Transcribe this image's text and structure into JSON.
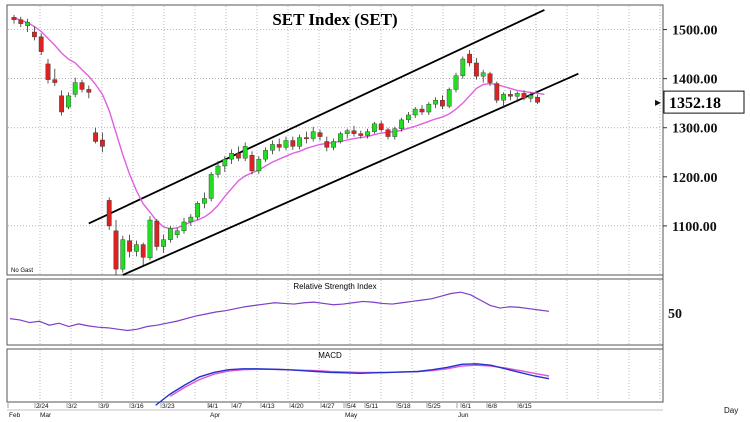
{
  "chart_data": [
    {
      "type": "candlestick",
      "title": "SET Index (SET)",
      "note": "No Gast",
      "y_ticks": [
        1100,
        1200,
        1300,
        1400,
        1500
      ],
      "y_tick_labels": [
        "1100.00",
        "1200.00",
        "1300.00",
        "1400.00",
        "1500.00"
      ],
      "ylim": [
        1000,
        1550
      ],
      "last_value_label": "1352.18",
      "last_value": 1352.18,
      "colors": {
        "up": "#22dd22",
        "down": "#dd2222",
        "ma": "#e060e0",
        "channel": "#000000"
      },
      "candles": [
        {
          "o": 1525,
          "h": 1530,
          "l": 1512,
          "c": 1520
        },
        {
          "o": 1520,
          "h": 1526,
          "l": 1505,
          "c": 1512
        },
        {
          "o": 1508,
          "h": 1522,
          "l": 1495,
          "c": 1515
        },
        {
          "o": 1495,
          "h": 1506,
          "l": 1478,
          "c": 1485
        },
        {
          "o": 1485,
          "h": 1492,
          "l": 1448,
          "c": 1455
        },
        {
          "o": 1430,
          "h": 1440,
          "l": 1390,
          "c": 1398
        },
        {
          "o": 1398,
          "h": 1420,
          "l": 1385,
          "c": 1392
        },
        {
          "o": 1365,
          "h": 1376,
          "l": 1325,
          "c": 1332
        },
        {
          "o": 1342,
          "h": 1372,
          "l": 1338,
          "c": 1365
        },
        {
          "o": 1368,
          "h": 1402,
          "l": 1362,
          "c": 1392
        },
        {
          "o": 1392,
          "h": 1398,
          "l": 1372,
          "c": 1378
        },
        {
          "o": 1378,
          "h": 1386,
          "l": 1360,
          "c": 1372
        },
        {
          "o": 1290,
          "h": 1300,
          "l": 1268,
          "c": 1272
        },
        {
          "o": 1275,
          "h": 1290,
          "l": 1250,
          "c": 1262
        },
        {
          "o": 1152,
          "h": 1158,
          "l": 1092,
          "c": 1100
        },
        {
          "o": 1090,
          "h": 1112,
          "l": 1000,
          "c": 1012
        },
        {
          "o": 1012,
          "h": 1080,
          "l": 1005,
          "c": 1072
        },
        {
          "o": 1070,
          "h": 1082,
          "l": 1036,
          "c": 1048
        },
        {
          "o": 1048,
          "h": 1070,
          "l": 1038,
          "c": 1062
        },
        {
          "o": 1062,
          "h": 1066,
          "l": 1020,
          "c": 1036
        },
        {
          "o": 1035,
          "h": 1120,
          "l": 1030,
          "c": 1112
        },
        {
          "o": 1110,
          "h": 1114,
          "l": 1050,
          "c": 1058
        },
        {
          "o": 1058,
          "h": 1082,
          "l": 1045,
          "c": 1072
        },
        {
          "o": 1072,
          "h": 1100,
          "l": 1066,
          "c": 1095
        },
        {
          "o": 1082,
          "h": 1096,
          "l": 1075,
          "c": 1090
        },
        {
          "o": 1090,
          "h": 1116,
          "l": 1084,
          "c": 1108
        },
        {
          "o": 1108,
          "h": 1124,
          "l": 1100,
          "c": 1118
        },
        {
          "o": 1118,
          "h": 1150,
          "l": 1112,
          "c": 1146
        },
        {
          "o": 1146,
          "h": 1168,
          "l": 1136,
          "c": 1156
        },
        {
          "o": 1156,
          "h": 1210,
          "l": 1150,
          "c": 1205
        },
        {
          "o": 1205,
          "h": 1232,
          "l": 1198,
          "c": 1222
        },
        {
          "o": 1222,
          "h": 1242,
          "l": 1210,
          "c": 1236
        },
        {
          "o": 1236,
          "h": 1256,
          "l": 1226,
          "c": 1248
        },
        {
          "o": 1248,
          "h": 1262,
          "l": 1232,
          "c": 1238
        },
        {
          "o": 1238,
          "h": 1270,
          "l": 1232,
          "c": 1262
        },
        {
          "o": 1244,
          "h": 1252,
          "l": 1205,
          "c": 1212
        },
        {
          "o": 1212,
          "h": 1242,
          "l": 1206,
          "c": 1236
        },
        {
          "o": 1236,
          "h": 1260,
          "l": 1230,
          "c": 1254
        },
        {
          "o": 1254,
          "h": 1274,
          "l": 1246,
          "c": 1266
        },
        {
          "o": 1266,
          "h": 1278,
          "l": 1252,
          "c": 1260
        },
        {
          "o": 1260,
          "h": 1282,
          "l": 1254,
          "c": 1274
        },
        {
          "o": 1274,
          "h": 1282,
          "l": 1255,
          "c": 1262
        },
        {
          "o": 1262,
          "h": 1286,
          "l": 1256,
          "c": 1280
        },
        {
          "o": 1280,
          "h": 1292,
          "l": 1268,
          "c": 1278
        },
        {
          "o": 1278,
          "h": 1302,
          "l": 1272,
          "c": 1292
        },
        {
          "o": 1290,
          "h": 1296,
          "l": 1274,
          "c": 1282
        },
        {
          "o": 1272,
          "h": 1282,
          "l": 1252,
          "c": 1260
        },
        {
          "o": 1260,
          "h": 1278,
          "l": 1254,
          "c": 1272
        },
        {
          "o": 1272,
          "h": 1292,
          "l": 1268,
          "c": 1288
        },
        {
          "o": 1288,
          "h": 1298,
          "l": 1278,
          "c": 1294
        },
        {
          "o": 1294,
          "h": 1304,
          "l": 1282,
          "c": 1288
        },
        {
          "o": 1288,
          "h": 1294,
          "l": 1278,
          "c": 1284
        },
        {
          "o": 1284,
          "h": 1298,
          "l": 1278,
          "c": 1292
        },
        {
          "o": 1292,
          "h": 1312,
          "l": 1288,
          "c": 1308
        },
        {
          "o": 1308,
          "h": 1314,
          "l": 1292,
          "c": 1296
        },
        {
          "o": 1296,
          "h": 1300,
          "l": 1276,
          "c": 1282
        },
        {
          "o": 1282,
          "h": 1302,
          "l": 1276,
          "c": 1298
        },
        {
          "o": 1298,
          "h": 1320,
          "l": 1292,
          "c": 1316
        },
        {
          "o": 1316,
          "h": 1332,
          "l": 1310,
          "c": 1326
        },
        {
          "o": 1326,
          "h": 1342,
          "l": 1320,
          "c": 1338
        },
        {
          "o": 1338,
          "h": 1346,
          "l": 1326,
          "c": 1332
        },
        {
          "o": 1332,
          "h": 1352,
          "l": 1326,
          "c": 1348
        },
        {
          "o": 1348,
          "h": 1362,
          "l": 1340,
          "c": 1356
        },
        {
          "o": 1356,
          "h": 1366,
          "l": 1338,
          "c": 1344
        },
        {
          "o": 1344,
          "h": 1382,
          "l": 1340,
          "c": 1378
        },
        {
          "o": 1378,
          "h": 1412,
          "l": 1372,
          "c": 1406
        },
        {
          "o": 1406,
          "h": 1445,
          "l": 1400,
          "c": 1440
        },
        {
          "o": 1450,
          "h": 1458,
          "l": 1425,
          "c": 1432
        },
        {
          "o": 1432,
          "h": 1442,
          "l": 1398,
          "c": 1405
        },
        {
          "o": 1405,
          "h": 1418,
          "l": 1392,
          "c": 1412
        },
        {
          "o": 1410,
          "h": 1414,
          "l": 1385,
          "c": 1392
        },
        {
          "o": 1390,
          "h": 1394,
          "l": 1350,
          "c": 1356
        },
        {
          "o": 1356,
          "h": 1372,
          "l": 1340,
          "c": 1368
        },
        {
          "o": 1368,
          "h": 1376,
          "l": 1356,
          "c": 1364
        },
        {
          "o": 1364,
          "h": 1374,
          "l": 1352,
          "c": 1370
        },
        {
          "o": 1370,
          "h": 1376,
          "l": 1356,
          "c": 1360
        },
        {
          "o": 1360,
          "h": 1372,
          "l": 1352,
          "c": 1366
        },
        {
          "o": 1362,
          "h": 1368,
          "l": 1348,
          "c": 1352
        }
      ],
      "moving_average": [
        1524,
        1519,
        1514,
        1506,
        1496,
        1482,
        1468,
        1452,
        1440,
        1432,
        1418,
        1405,
        1388,
        1368,
        1335,
        1290,
        1245,
        1205,
        1172,
        1145,
        1128,
        1110,
        1098,
        1094,
        1096,
        1102,
        1108,
        1112,
        1118,
        1128,
        1142,
        1160,
        1176,
        1192,
        1202,
        1208,
        1214,
        1222,
        1230,
        1236,
        1242,
        1248,
        1252,
        1258,
        1262,
        1266,
        1268,
        1270,
        1272,
        1275,
        1278,
        1280,
        1282,
        1286,
        1289,
        1291,
        1292,
        1295,
        1299,
        1303,
        1308,
        1313,
        1318,
        1322,
        1328,
        1338,
        1350,
        1365,
        1380,
        1388,
        1390,
        1388,
        1384,
        1380,
        1376,
        1374,
        1372,
        1370,
        1368
      ],
      "trend_channel": [
        {
          "from": [
            11,
            1105
          ],
          "to": [
            78,
            1540
          ]
        },
        {
          "from": [
            16,
            1000
          ],
          "to": [
            83,
            1410
          ]
        }
      ]
    },
    {
      "type": "line",
      "title": "Relative Strength Index",
      "y_tick_labels": [
        "50"
      ],
      "ylim": [
        0,
        100
      ],
      "series": [
        {
          "values": [
            40,
            38,
            34,
            36,
            30,
            33,
            28,
            32,
            29,
            27,
            26,
            24,
            22,
            24,
            28,
            30,
            33,
            36,
            40,
            44,
            47,
            50,
            52,
            55,
            58,
            60,
            62,
            64,
            63,
            62,
            64,
            65,
            63,
            61,
            62,
            64,
            66,
            65,
            63,
            62,
            64,
            66,
            68,
            70,
            74,
            78,
            80,
            76,
            68,
            60,
            56,
            58,
            57,
            55,
            53,
            51
          ]
        }
      ]
    },
    {
      "type": "line",
      "title": "MACD",
      "x_tick_labels": [
        "Feb",
        "2/24",
        "Mar",
        "3/2",
        "3/9",
        "3/16",
        "3/23",
        "4/1",
        "Apr",
        "4/7",
        "4/13",
        "4/20",
        "4/27",
        "5/4",
        "May",
        "5/11",
        "5/18",
        "5/25",
        "6/1",
        "Jun",
        "6/8",
        "6/15"
      ],
      "x_unit_label": "Day",
      "colors": {
        "macd": "#2233cc",
        "signal": "#e055d5"
      },
      "series": [
        {
          "name": "",
          "values": [
            null,
            null,
            null,
            null,
            null,
            null,
            null,
            null,
            null,
            null,
            -65,
            -40,
            -20,
            -2,
            8,
            14,
            16,
            16,
            15,
            14,
            12,
            10,
            8,
            7,
            6,
            7,
            8,
            9,
            10,
            14,
            19,
            26,
            27,
            24,
            16,
            8,
            0,
            -6
          ]
        },
        {
          "name": "",
          "values": [
            null,
            null,
            null,
            null,
            null,
            null,
            null,
            null,
            null,
            null,
            null,
            -45,
            -25,
            -8,
            4,
            11,
            14,
            15,
            15,
            14,
            13,
            12,
            10,
            9,
            8,
            8,
            8,
            9,
            10,
            12,
            16,
            22,
            24,
            22,
            18,
            12,
            6,
            0
          ]
        }
      ]
    }
  ]
}
